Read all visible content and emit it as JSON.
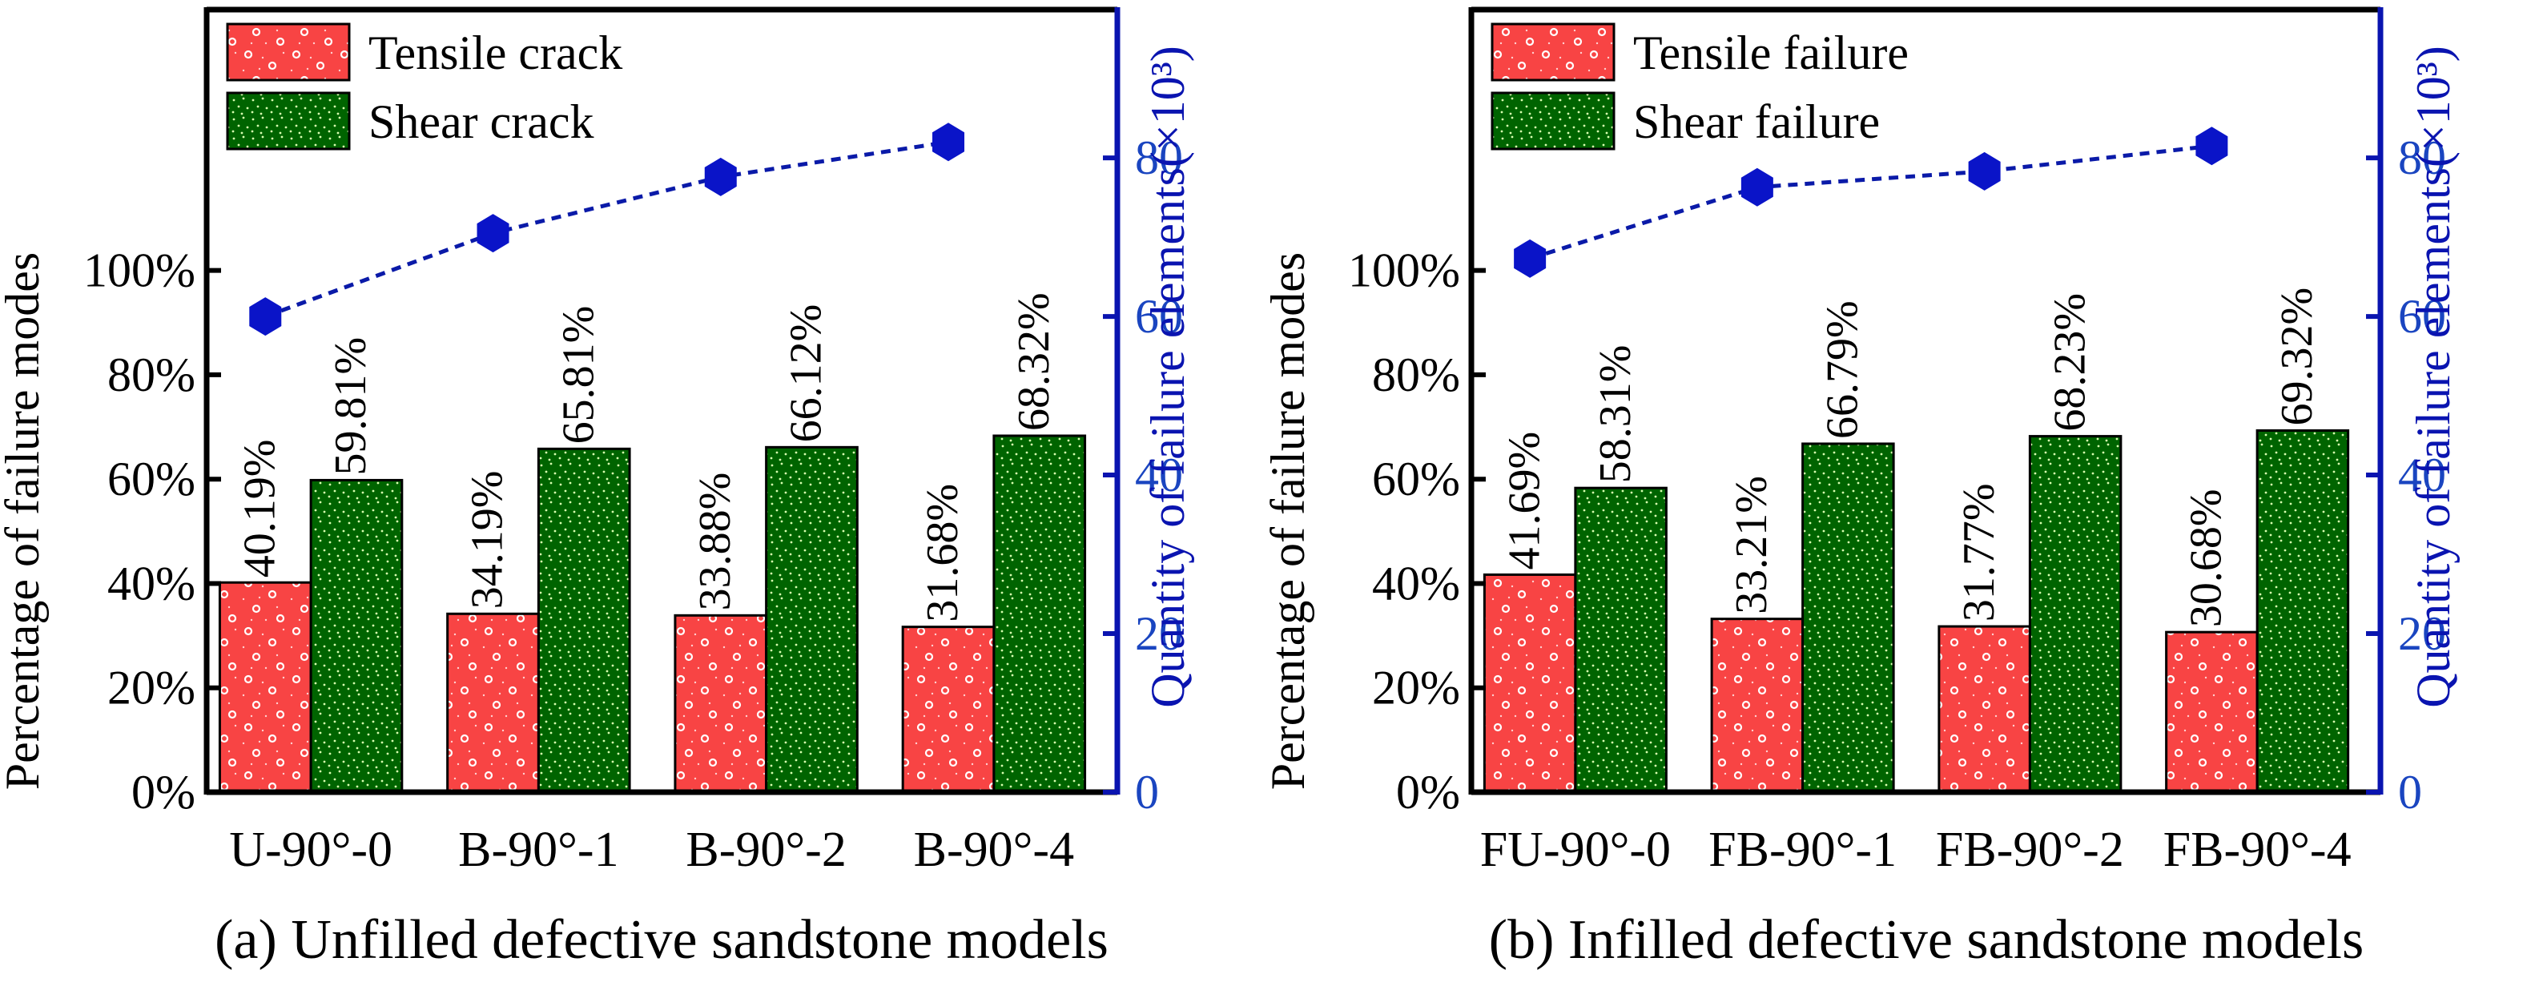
{
  "figure": {
    "panels_count": 2
  },
  "colors": {
    "tensile": "#f84444",
    "tensile_dots": "#ffffff",
    "shear": "#006400",
    "shear_dots": "#d8ffb0",
    "line": "#0a1aa8",
    "marker": "#0a14c8",
    "right_axis": "#0a14b0",
    "right_tick_text": "#1a45c0",
    "frame": "#000000"
  },
  "chart_data": [
    {
      "type": "bar",
      "panel": "a",
      "caption": "(a) Unfilled defective sandstone models",
      "categories": [
        "U-90°-0",
        "B-90°-1",
        "B-90°-2",
        "B-90°-4"
      ],
      "ylabel": "Percentage of failure modes",
      "y2label": "Quantity of failure elements(×10³)",
      "ylim": [
        0,
        150
      ],
      "yticks": [
        0,
        20,
        40,
        60,
        80,
        100
      ],
      "ytick_labels": [
        "0%",
        "20%",
        "40%",
        "60%",
        "80%",
        "100%"
      ],
      "y2lim": [
        0,
        98.7
      ],
      "y2ticks": [
        0,
        20,
        40,
        60,
        80
      ],
      "y2tick_labels": [
        "0",
        "20",
        "40",
        "60",
        "80"
      ],
      "legend": "top-left",
      "series": [
        {
          "name": "Tensile crack",
          "kind": "bar",
          "axis": "left",
          "values": [
            40.19,
            34.19,
            33.88,
            31.68
          ],
          "labels": [
            "40.19%",
            "34.19%",
            "33.88%",
            "31.68%"
          ]
        },
        {
          "name": "Shear crack",
          "kind": "bar",
          "axis": "left",
          "values": [
            59.81,
            65.81,
            66.12,
            68.32
          ],
          "labels": [
            "59.81%",
            "65.81%",
            "66.12%",
            "68.32%"
          ]
        },
        {
          "name": "Quantity of failure elements",
          "kind": "line",
          "axis": "right",
          "style": "dashed",
          "marker": "hexagon",
          "values": [
            60.0,
            70.5,
            77.6,
            82.0
          ]
        }
      ]
    },
    {
      "type": "bar",
      "panel": "b",
      "caption": "(b) Infilled defective sandstone models",
      "categories": [
        "FU-90°-0",
        "FB-90°-1",
        "FB-90°-2",
        "FB-90°-4"
      ],
      "ylabel": "Percentage of failure modes",
      "y2label": "Quantity of failure elements(×10³)",
      "ylim": [
        0,
        150
      ],
      "yticks": [
        0,
        20,
        40,
        60,
        80,
        100
      ],
      "ytick_labels": [
        "0%",
        "20%",
        "40%",
        "60%",
        "80%",
        "100%"
      ],
      "y2lim": [
        0,
        98.7
      ],
      "y2ticks": [
        0,
        20,
        40,
        60,
        80
      ],
      "y2tick_labels": [
        "0",
        "20",
        "40",
        "60",
        "80"
      ],
      "legend": "top-left",
      "series": [
        {
          "name": "Tensile failure",
          "kind": "bar",
          "axis": "left",
          "values": [
            41.69,
            33.21,
            31.77,
            30.68
          ],
          "labels": [
            "41.69%",
            "33.21%",
            "31.77%",
            "30.68%"
          ]
        },
        {
          "name": "Shear failure",
          "kind": "bar",
          "axis": "left",
          "values": [
            58.31,
            66.79,
            68.23,
            69.32
          ],
          "labels": [
            "58.31%",
            "66.79%",
            "68.23%",
            "69.32%"
          ]
        },
        {
          "name": "Quantity of failure elements",
          "kind": "line",
          "axis": "right",
          "style": "dashed",
          "marker": "hexagon",
          "values": [
            67.3,
            76.3,
            78.3,
            81.5
          ]
        }
      ]
    }
  ]
}
